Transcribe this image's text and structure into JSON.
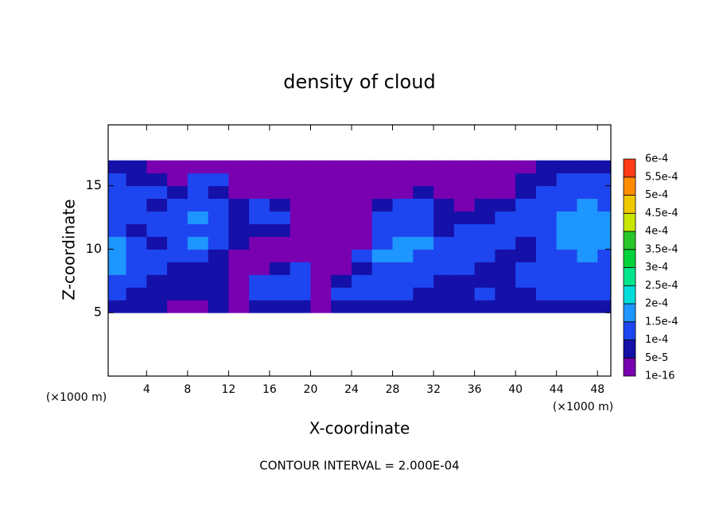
{
  "chart_data": {
    "type": "contour",
    "title": "density of cloud",
    "x_label": "X-coordinate",
    "y_label": "Z-coordinate",
    "x_unit": "(×1000 m)",
    "annotation": "CONTOUR INTERVAL = 2.000E-04",
    "xlim": [
      0.25,
      49.3
    ],
    "ylim": [
      0,
      19.8
    ],
    "xticks": [
      4,
      8,
      12,
      16,
      20,
      24,
      28,
      32,
      36,
      40,
      44,
      48
    ],
    "yticks": [
      5,
      10,
      15
    ],
    "x": [
      1,
      3,
      5,
      7,
      9,
      11,
      13,
      15,
      17,
      19,
      21,
      23,
      25,
      27,
      29,
      31,
      33,
      35,
      37,
      39,
      41,
      43,
      45,
      47,
      49
    ],
    "y": [
      5.5,
      6.5,
      7.5,
      8.5,
      9.5,
      10.5,
      11.5,
      12.5,
      13.5,
      14.5,
      15.5,
      16.5
    ],
    "z": [
      [
        7e-05,
        7e-05,
        7e-05,
        2e-05,
        2e-05,
        7e-05,
        2e-05,
        7e-05,
        7e-05,
        7e-05,
        2e-05,
        7e-05,
        7e-05,
        7e-05,
        7e-05,
        7e-05,
        7e-05,
        7e-05,
        7e-05,
        7e-05,
        7e-05,
        7e-05,
        7e-05,
        7e-05,
        7e-05
      ],
      [
        0.00012,
        7e-05,
        7e-05,
        7e-05,
        7e-05,
        7e-05,
        2e-05,
        0.00012,
        0.00012,
        0.00012,
        2e-05,
        0.00012,
        0.00012,
        0.00012,
        0.00012,
        7e-05,
        7e-05,
        7e-05,
        0.00012,
        7e-05,
        7e-05,
        0.00012,
        0.00012,
        0.00012,
        0.00012
      ],
      [
        0.00012,
        0.00012,
        7e-05,
        7e-05,
        7e-05,
        7e-05,
        2e-05,
        0.00012,
        0.00012,
        0.00012,
        2e-05,
        7e-05,
        0.00012,
        0.00012,
        0.00012,
        0.00012,
        7e-05,
        7e-05,
        7e-05,
        7e-05,
        0.00012,
        0.00012,
        0.00012,
        0.00012,
        0.00012
      ],
      [
        0.00017,
        0.00012,
        0.00012,
        7e-05,
        7e-05,
        7e-05,
        2e-05,
        2e-05,
        7e-05,
        0.00012,
        2e-05,
        2e-05,
        7e-05,
        0.00012,
        0.00012,
        0.00012,
        0.00012,
        0.00012,
        7e-05,
        7e-05,
        0.00012,
        0.00012,
        0.00012,
        0.00012,
        0.00012
      ],
      [
        0.00017,
        0.00012,
        0.00012,
        0.00012,
        0.00012,
        7e-05,
        2e-05,
        2e-05,
        2e-05,
        2e-05,
        2e-05,
        2e-05,
        0.00012,
        0.00017,
        0.00017,
        0.00012,
        0.00012,
        0.00012,
        0.00012,
        7e-05,
        7e-05,
        0.00012,
        0.00012,
        0.00017,
        0.00012
      ],
      [
        0.00017,
        0.00012,
        7e-05,
        0.00012,
        0.00017,
        0.00012,
        7e-05,
        2e-05,
        2e-05,
        2e-05,
        2e-05,
        2e-05,
        2e-05,
        0.00012,
        0.00017,
        0.00017,
        0.00012,
        0.00012,
        0.00012,
        0.00012,
        7e-05,
        0.00012,
        0.00017,
        0.00017,
        0.00017
      ],
      [
        0.00012,
        7e-05,
        0.00012,
        0.00012,
        0.00012,
        0.00012,
        7e-05,
        7e-05,
        7e-05,
        2e-05,
        2e-05,
        2e-05,
        2e-05,
        0.00012,
        0.00012,
        0.00012,
        7e-05,
        0.00012,
        0.00012,
        0.00012,
        0.00012,
        0.00012,
        0.00017,
        0.00017,
        0.00017
      ],
      [
        0.00012,
        0.00012,
        0.00012,
        0.00012,
        0.00017,
        0.00012,
        7e-05,
        0.00012,
        0.00012,
        2e-05,
        2e-05,
        2e-05,
        2e-05,
        0.00012,
        0.00012,
        0.00012,
        7e-05,
        7e-05,
        7e-05,
        0.00012,
        0.00012,
        0.00012,
        0.00017,
        0.00017,
        0.00017
      ],
      [
        0.00012,
        0.00012,
        7e-05,
        0.00012,
        0.00012,
        0.00012,
        7e-05,
        0.00012,
        7e-05,
        2e-05,
        2e-05,
        2e-05,
        2e-05,
        7e-05,
        0.00012,
        0.00012,
        7e-05,
        2e-05,
        7e-05,
        7e-05,
        0.00012,
        0.00012,
        0.00012,
        0.00017,
        0.00012
      ],
      [
        0.00012,
        0.00012,
        0.00012,
        7e-05,
        0.00012,
        7e-05,
        2e-05,
        2e-05,
        2e-05,
        2e-05,
        2e-05,
        2e-05,
        2e-05,
        2e-05,
        2e-05,
        7e-05,
        2e-05,
        2e-05,
        2e-05,
        2e-05,
        7e-05,
        0.00012,
        0.00012,
        0.00012,
        0.00012
      ],
      [
        0.00012,
        7e-05,
        7e-05,
        2e-05,
        0.00012,
        0.00012,
        2e-05,
        2e-05,
        2e-05,
        2e-05,
        2e-05,
        2e-05,
        2e-05,
        2e-05,
        2e-05,
        2e-05,
        2e-05,
        2e-05,
        2e-05,
        2e-05,
        7e-05,
        7e-05,
        0.00012,
        0.00012,
        0.00012
      ],
      [
        7e-05,
        7e-05,
        2e-05,
        2e-05,
        2e-05,
        2e-05,
        2e-05,
        2e-05,
        2e-05,
        2e-05,
        2e-05,
        2e-05,
        2e-05,
        2e-05,
        2e-05,
        2e-05,
        2e-05,
        2e-05,
        2e-05,
        2e-05,
        2e-05,
        7e-05,
        7e-05,
        7e-05,
        7e-05
      ]
    ],
    "colorbar": {
      "levels": [
        1e-16,
        {
          "value": 5e-05,
          "label": "5e-5"
        },
        {
          "value": 0.0001,
          "label": "1e-4"
        },
        {
          "value": 0.00015,
          "label": "1.5e-4"
        },
        {
          "value": 0.0002,
          "label": "2e-4"
        },
        {
          "value": 0.00025,
          "label": "2.5e-4"
        },
        {
          "value": 0.0003,
          "label": "3e-4"
        },
        {
          "value": 0.00035,
          "label": "3.5e-4"
        },
        {
          "value": 0.0004,
          "label": "4e-4"
        },
        {
          "value": 0.00045,
          "label": "4.5e-4"
        },
        {
          "value": 0.0005,
          "label": "5e-4"
        },
        {
          "value": 0.00055,
          "label": "5.5e-4"
        },
        {
          "value": 0.0006,
          "label": "6e-4"
        }
      ],
      "colors": [
        "#7800b0",
        "#1410a8",
        "#1e46f0",
        "#1e96ff",
        "#00dcdc",
        "#00e68c",
        "#00d23c",
        "#28c828",
        "#c8e600",
        "#f0c800",
        "#ff8c00",
        "#ff3c14"
      ]
    }
  }
}
